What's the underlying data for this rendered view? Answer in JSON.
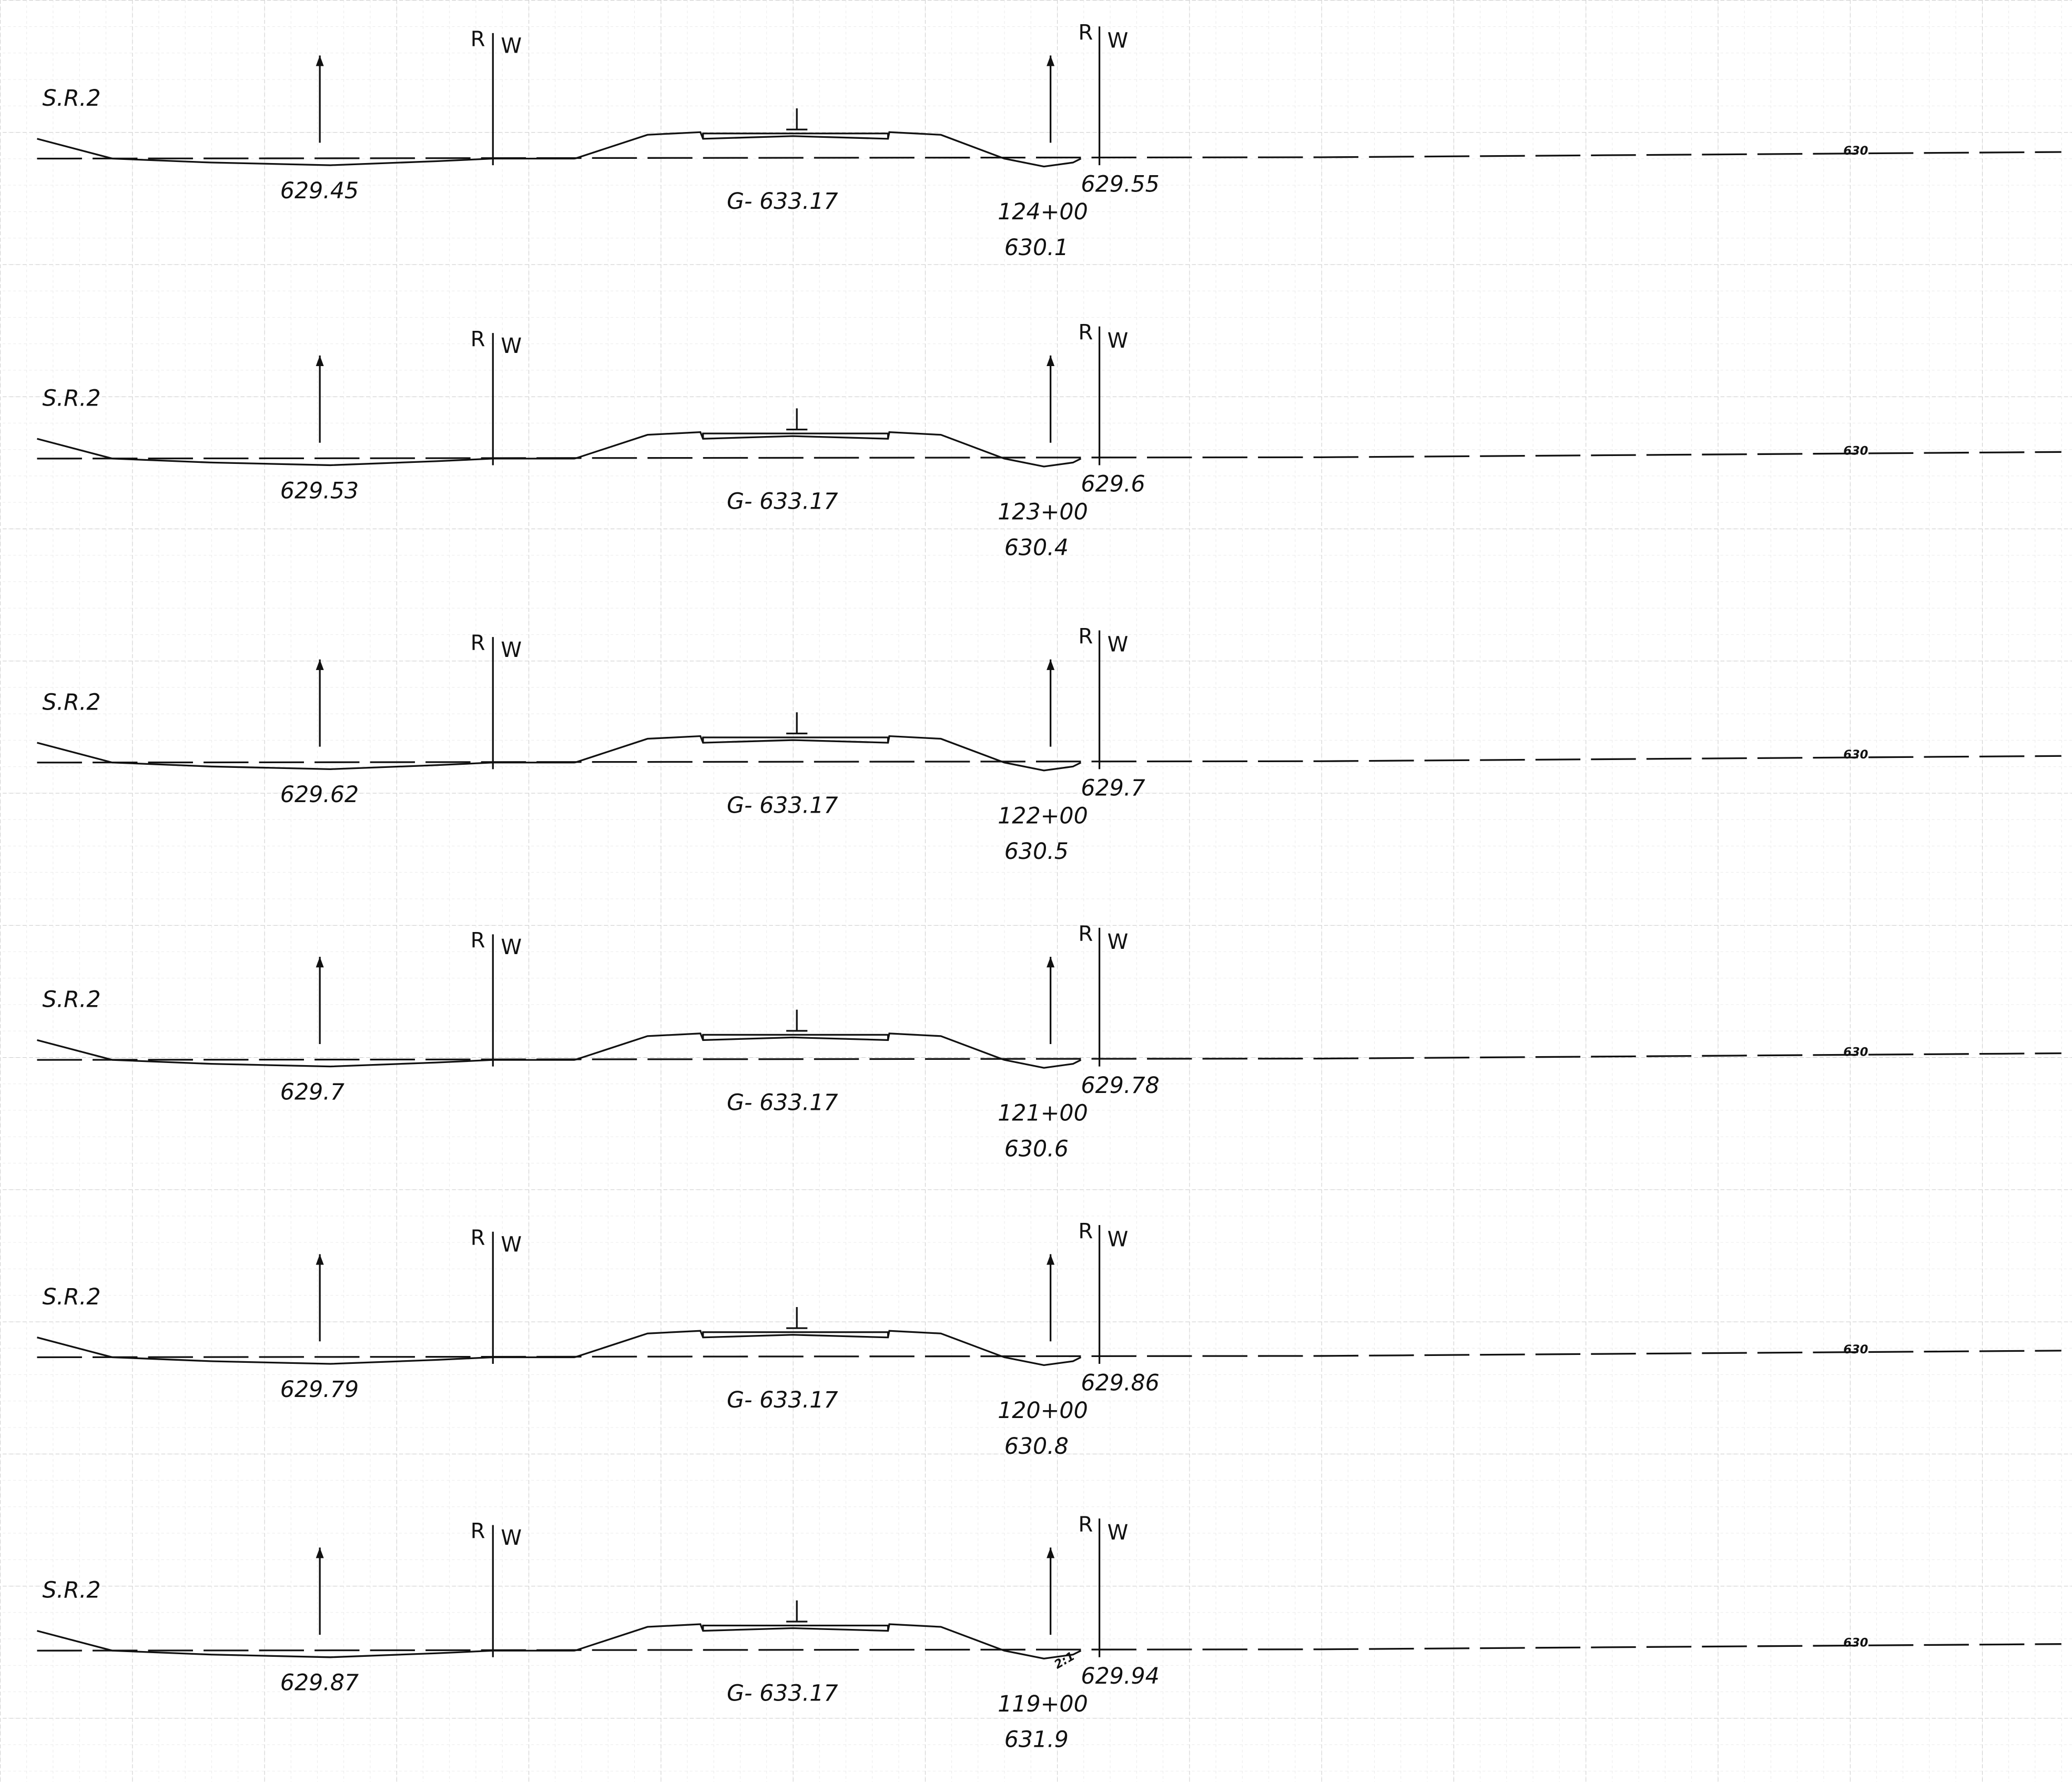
{
  "sections": [
    {
      "label": "S.R.2",
      "r_left": "R",
      "w_left": "W",
      "r_right": "R",
      "w_right": "W",
      "left_elev": "629.45",
      "grade": "G- 633.17",
      "right_elev": "629.55",
      "station": "124+00",
      "elevation": "630.1",
      "datum": "630"
    },
    {
      "label": "S.R.2",
      "r_left": "R",
      "w_left": "W",
      "r_right": "R",
      "w_right": "W",
      "left_elev": "629.53",
      "grade": "G- 633.17",
      "right_elev": "629.6",
      "station": "123+00",
      "elevation": "630.4",
      "datum": "630"
    },
    {
      "label": "S.R.2",
      "r_left": "R",
      "w_left": "W",
      "r_right": "R",
      "w_right": "W",
      "left_elev": "629.62",
      "grade": "G- 633.17",
      "right_elev": "629.7",
      "station": "122+00",
      "elevation": "630.5",
      "datum": "630"
    },
    {
      "label": "S.R.2",
      "r_left": "R",
      "w_left": "W",
      "r_right": "R",
      "w_right": "W",
      "left_elev": "629.7",
      "grade": "G- 633.17",
      "right_elev": "629.78",
      "station": "121+00",
      "elevation": "630.6",
      "datum": "630"
    },
    {
      "label": "S.R.2",
      "r_left": "R",
      "w_left": "W",
      "r_right": "R",
      "w_right": "W",
      "left_elev": "629.79",
      "grade": "G- 633.17",
      "right_elev": "629.86",
      "station": "120+00",
      "elevation": "630.8",
      "datum": "630"
    },
    {
      "label": "S.R.2",
      "r_left": "R",
      "w_left": "W",
      "r_right": "R",
      "w_right": "W",
      "left_elev": "629.87",
      "grade": "G- 633.17",
      "right_elev": "629.94",
      "station": "119+00",
      "elevation": "631.9",
      "datum": "630",
      "slope": "2:1"
    }
  ]
}
